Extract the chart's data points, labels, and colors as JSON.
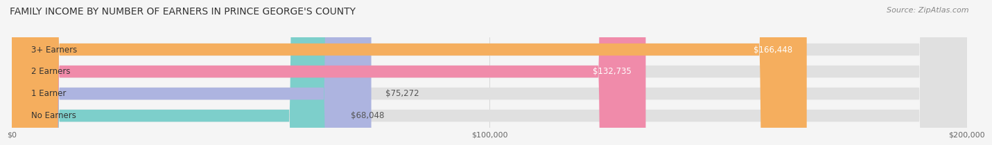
{
  "title": "FAMILY INCOME BY NUMBER OF EARNERS IN PRINCE GEORGE'S COUNTY",
  "source": "Source: ZipAtlas.com",
  "categories": [
    "No Earners",
    "1 Earner",
    "2 Earners",
    "3+ Earners"
  ],
  "values": [
    68048,
    75272,
    132735,
    166448
  ],
  "bar_colors": [
    "#7dcfcb",
    "#adb4e0",
    "#f08baa",
    "#f5ae5e"
  ],
  "label_colors": [
    "#333333",
    "#333333",
    "#ffffff",
    "#ffffff"
  ],
  "value_labels": [
    "$68,048",
    "$75,272",
    "$132,735",
    "$166,448"
  ],
  "xlim": [
    0,
    200000
  ],
  "xticks": [
    0,
    100000,
    200000
  ],
  "xtick_labels": [
    "$0",
    "$100,000",
    "$200,000"
  ],
  "title_fontsize": 10,
  "source_fontsize": 8,
  "label_fontsize": 8.5,
  "value_fontsize": 8.5,
  "background_color": "#f5f5f5",
  "bar_background_color": "#e0e0e0"
}
